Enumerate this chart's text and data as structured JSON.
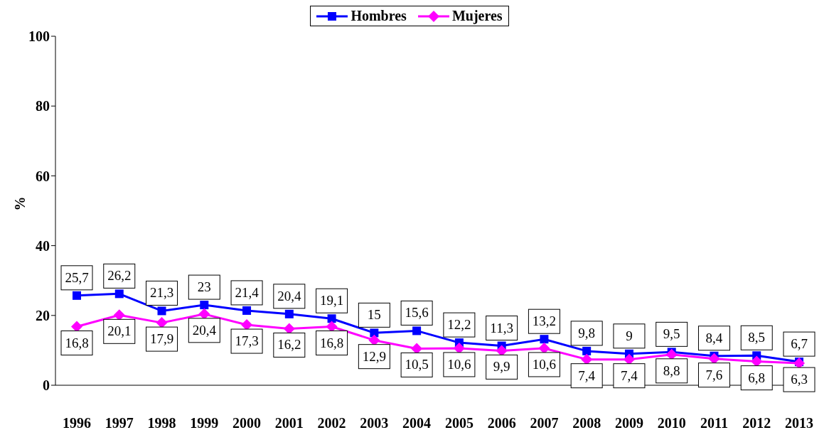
{
  "chart_data": {
    "type": "line",
    "ylabel": "%",
    "categories": [
      "1996",
      "1997",
      "1998",
      "1999",
      "2000",
      "2001",
      "2002",
      "2003",
      "2004",
      "2005",
      "2006",
      "2007",
      "2008",
      "2009",
      "2010",
      "2011",
      "2012",
      "2013"
    ],
    "series": [
      {
        "name": "Hombres",
        "color": "#0000ff",
        "marker": "square",
        "values": [
          25.7,
          26.2,
          21.3,
          23,
          21.4,
          20.4,
          19.1,
          15,
          15.6,
          12.2,
          11.3,
          13.2,
          9.8,
          9,
          9.5,
          8.4,
          8.5,
          6.7
        ],
        "value_labels": [
          "25,7",
          "26,2",
          "21,3",
          "23",
          "21,4",
          "20,4",
          "19,1",
          "15",
          "15,6",
          "12,2",
          "11,3",
          "13,2",
          "9,8",
          "9",
          "9,5",
          "8,4",
          "8,5",
          "6,7"
        ]
      },
      {
        "name": "Mujeres",
        "color": "#ff00ff",
        "marker": "diamond",
        "values": [
          16.8,
          20.1,
          17.9,
          20.4,
          17.3,
          16.2,
          16.8,
          12.9,
          10.5,
          10.6,
          9.9,
          10.6,
          7.4,
          7.4,
          8.8,
          7.6,
          6.8,
          6.3
        ],
        "value_labels": [
          "16,8",
          "20,1",
          "17,9",
          "20,4",
          "17,3",
          "16,2",
          "16,8",
          "12,9",
          "10,5",
          "10,6",
          "9,9",
          "10,6",
          "7,4",
          "7,4",
          "8,8",
          "7,6",
          "6,8",
          "6,3"
        ]
      }
    ],
    "ylim": [
      0,
      100
    ],
    "yticks": [
      0,
      20,
      40,
      60,
      80,
      100
    ],
    "legend": "top"
  }
}
